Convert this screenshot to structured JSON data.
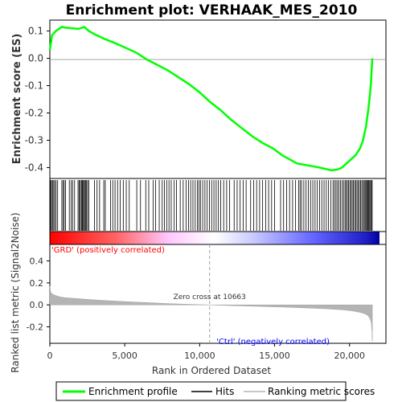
{
  "chart_data": {
    "type": "line",
    "title": "Enrichment plot: VERHAAK_MES_2010",
    "xlabel": "Rank in Ordered Dataset",
    "xlim": [
      0,
      22000
    ],
    "x_ticks": [
      0,
      5000,
      10000,
      15000,
      20000
    ],
    "x_tick_labels": [
      "0",
      "5,000",
      "10,000",
      "15,000",
      "20,000"
    ],
    "grid": false,
    "es_panel": {
      "ylabel": "Enrichment score (ES)",
      "ylim": [
        -0.44,
        0.14
      ],
      "y_ticks": [
        0.1,
        0.0,
        -0.1,
        -0.2,
        -0.3,
        -0.4
      ],
      "y_tick_labels": [
        "0.1",
        "0.0",
        "-0.1",
        "-0.2",
        "-0.3",
        "-0.4"
      ],
      "series": [
        {
          "name": "Enrichment profile",
          "color": "#00ff00",
          "x": [
            0,
            150,
            400,
            800,
            1100,
            1500,
            1900,
            2300,
            2600,
            3100,
            3700,
            4300,
            5000,
            5800,
            6500,
            7200,
            7900,
            8600,
            9300,
            10000,
            10700,
            11400,
            12100,
            12800,
            13500,
            14200,
            14900,
            15500,
            16000,
            16500,
            17000,
            17500,
            18000,
            18400,
            18800,
            19200,
            19500,
            19800,
            20100,
            20400,
            20700,
            20900,
            21100,
            21250,
            21350,
            21430,
            21480,
            21520
          ],
          "y": [
            0.03,
            0.085,
            0.1,
            0.115,
            0.112,
            0.11,
            0.108,
            0.115,
            0.1,
            0.085,
            0.07,
            0.057,
            0.04,
            0.02,
            -0.005,
            -0.025,
            -0.045,
            -0.07,
            -0.095,
            -0.125,
            -0.16,
            -0.19,
            -0.225,
            -0.255,
            -0.285,
            -0.31,
            -0.33,
            -0.355,
            -0.37,
            -0.385,
            -0.39,
            -0.395,
            -0.4,
            -0.405,
            -0.41,
            -0.407,
            -0.4,
            -0.385,
            -0.37,
            -0.355,
            -0.33,
            -0.3,
            -0.25,
            -0.19,
            -0.14,
            -0.09,
            -0.04,
            0.0
          ]
        }
      ]
    },
    "hits": {
      "name": "Hits",
      "color": "#000000",
      "x": [
        50,
        110,
        180,
        260,
        330,
        420,
        520,
        800,
        880,
        960,
        1050,
        1300,
        1420,
        1520,
        1650,
        1880,
        1950,
        2020,
        2100,
        2150,
        2200,
        2260,
        2320,
        2380,
        2450,
        2520,
        2600,
        2980,
        3150,
        3320,
        3600,
        3700,
        4050,
        4200,
        4350,
        4520,
        4700,
        4900,
        5100,
        5300,
        5800,
        6050,
        6400,
        6600,
        6900,
        7050,
        7300,
        7500,
        7650,
        7800,
        7950,
        8100,
        8300,
        8450,
        8700,
        8900,
        9100,
        9250,
        9400,
        9550,
        9700,
        9850,
        9950,
        10050,
        10200,
        10350,
        10500,
        10650,
        10800,
        10950,
        11100,
        11250,
        11400,
        11600,
        11800,
        12000,
        12300,
        12500,
        12700,
        12900,
        13100,
        13400,
        13600,
        13800,
        14000,
        14200,
        14400,
        14600,
        14800,
        15000,
        15400,
        15600,
        15800,
        16000,
        16200,
        16400,
        16600,
        16700,
        16800,
        16950,
        17100,
        17250,
        17400,
        17550,
        17700,
        17850,
        18000,
        18150,
        18300,
        18450,
        18600,
        18750,
        18900,
        19000,
        19100,
        19200,
        19300,
        19400,
        19500,
        19600,
        19700,
        19780,
        19860,
        19940,
        20020,
        20100,
        20180,
        20260,
        20340,
        20420,
        20500,
        20580,
        20660,
        20740,
        20820,
        20900,
        20980,
        21040,
        21100,
        21160,
        21220,
        21280,
        21340,
        21400,
        21460,
        21510
      ]
    },
    "metric_panel": {
      "ylabel": "Ranked list metric (Signal2Noise)",
      "ylim": [
        -0.35,
        0.55
      ],
      "y_ticks": [
        0.4,
        0.2,
        0.0,
        -0.2
      ],
      "y_tick_labels": [
        "0.4",
        "0.2",
        "0.0",
        "-0.2"
      ],
      "series": [
        {
          "name": "Ranking metric scores",
          "color": "#b4b4b4",
          "x": [
            0,
            30,
            80,
            150,
            300,
            600,
            1000,
            2000,
            3000,
            4000,
            5000,
            6000,
            7000,
            8000,
            9000,
            10000,
            10663,
            11500,
            12500,
            13500,
            14500,
            15500,
            16500,
            17500,
            18500,
            19500,
            20200,
            20700,
            21000,
            21200,
            21350,
            21450,
            21500,
            21520
          ],
          "y": [
            0.17,
            0.13,
            0.11,
            0.1,
            0.09,
            0.075,
            0.065,
            0.055,
            0.045,
            0.037,
            0.03,
            0.023,
            0.017,
            0.011,
            0.006,
            0.002,
            0.0,
            -0.004,
            -0.008,
            -0.012,
            -0.016,
            -0.02,
            -0.025,
            -0.03,
            -0.036,
            -0.045,
            -0.055,
            -0.068,
            -0.08,
            -0.095,
            -0.12,
            -0.16,
            -0.25,
            -0.33
          ]
        }
      ],
      "zero_cross_rank": 10663,
      "zero_cross_label": "Zero cross at 10663",
      "positive_label": "'GRD' (positively correlated)",
      "positive_color": "#ff0000",
      "negative_label": "'Ctrl' (negatively correlated)",
      "negative_color": "#0000ff"
    },
    "legend": {
      "placement": "bottom",
      "entries": [
        {
          "label": "Enrichment profile",
          "color": "#00ff00"
        },
        {
          "label": "Hits",
          "color": "#000000"
        },
        {
          "label": "Ranking metric scores",
          "color": "#b4b4b4"
        }
      ]
    }
  }
}
